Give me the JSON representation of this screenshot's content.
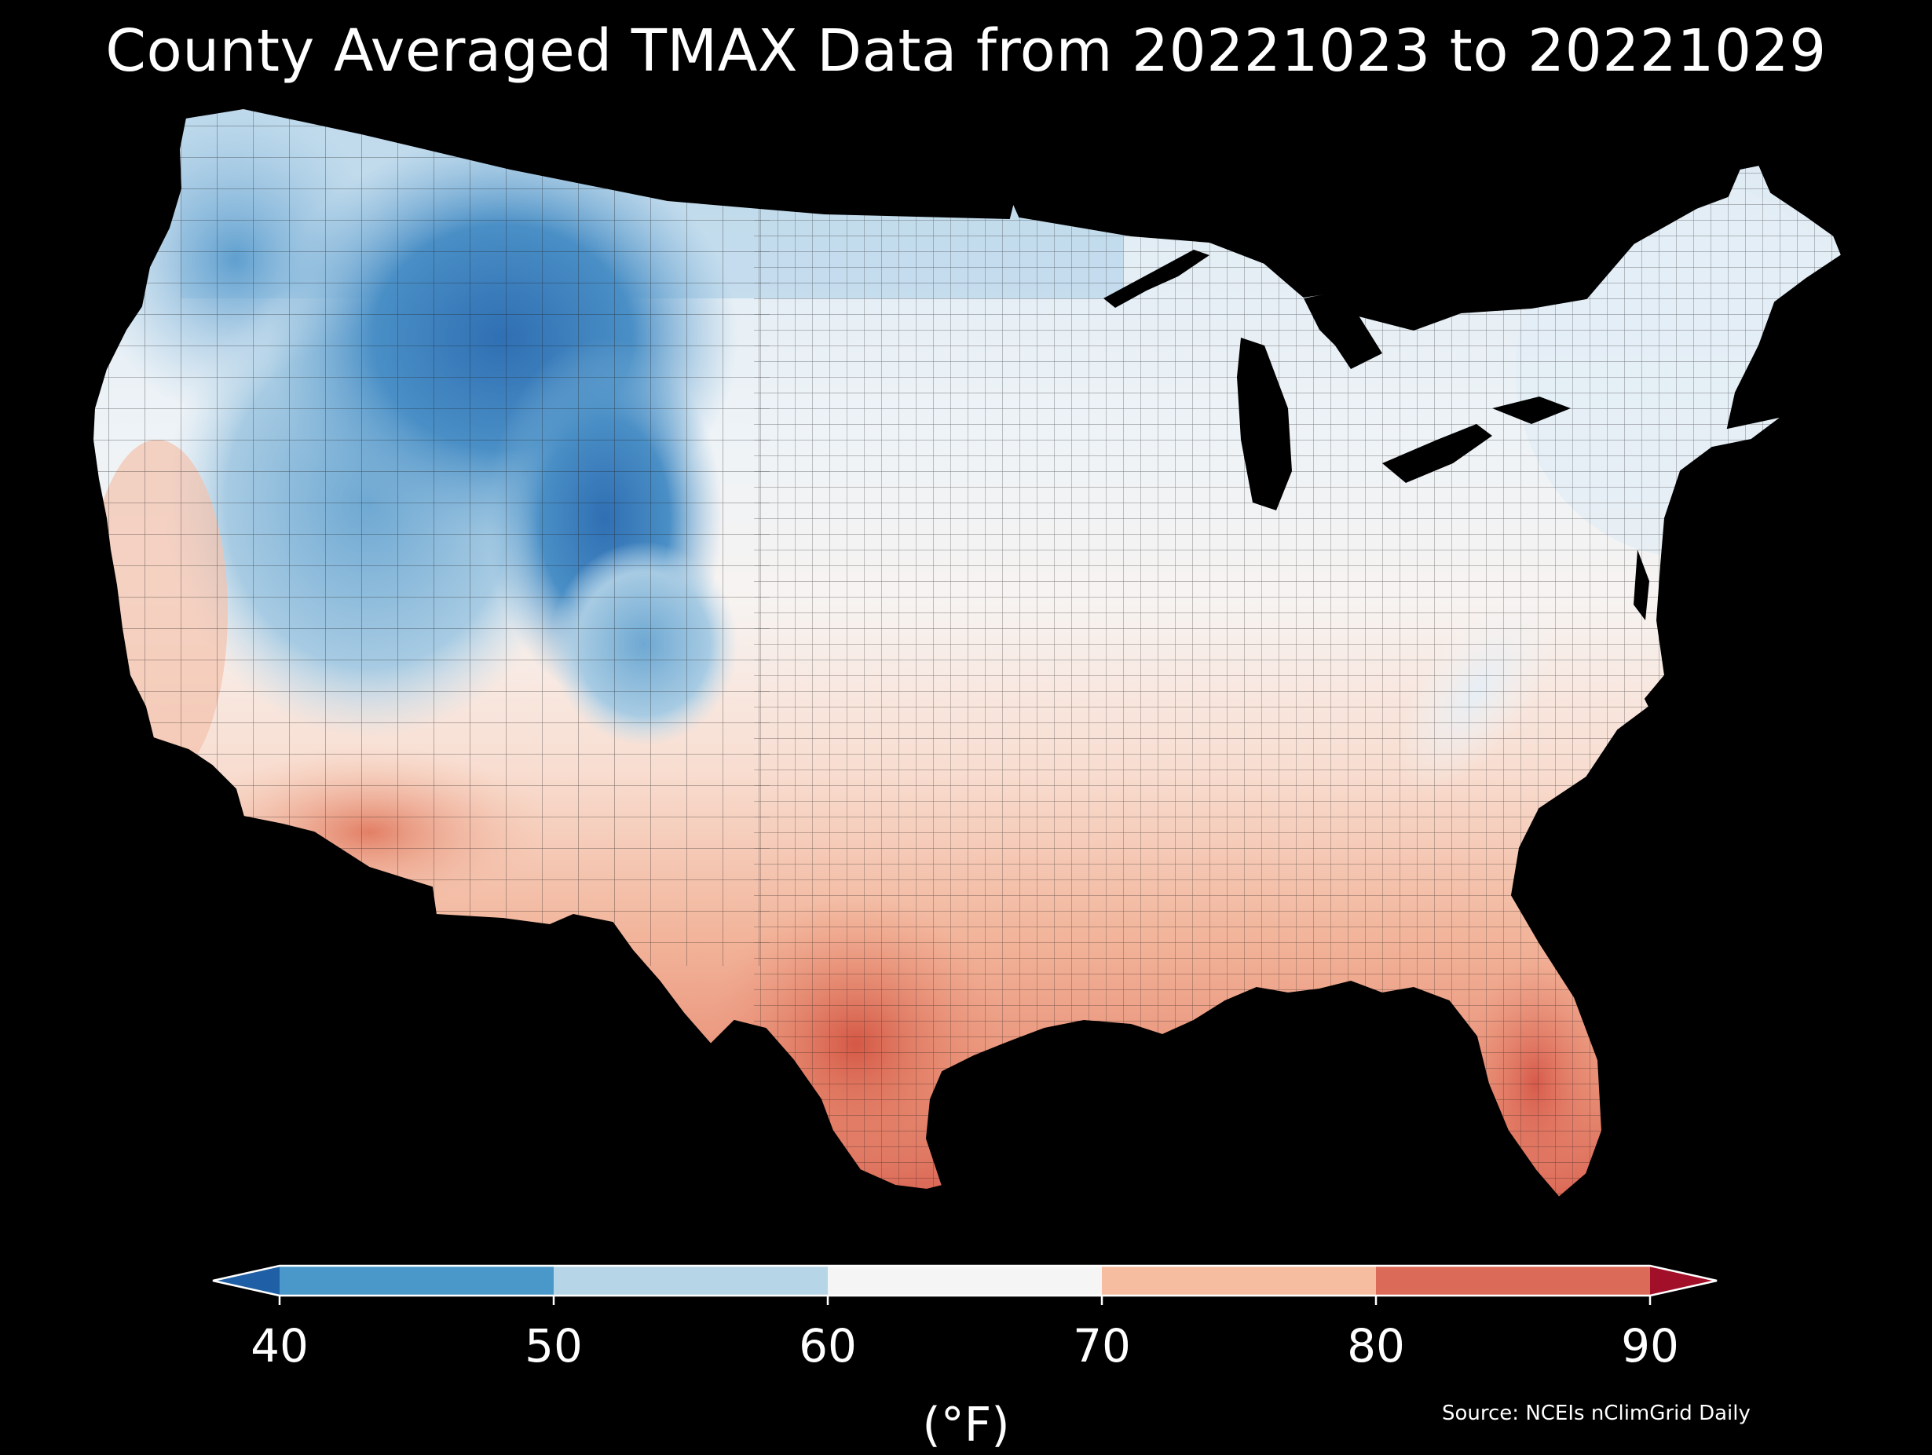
{
  "title": "County Averaged TMAX Data from 20221023 to 20221029",
  "colorbar": {
    "unit": "(°F)",
    "ticks": [
      "40",
      "50",
      "60",
      "70",
      "80",
      "90"
    ],
    "bins": [
      {
        "range": "<40",
        "color": "#1f5fa6"
      },
      {
        "range": "40-50",
        "color": "#4a98c9"
      },
      {
        "range": "50-60",
        "color": "#b6d6e8"
      },
      {
        "range": "60-70",
        "color": "#f5f5f5"
      },
      {
        "range": "70-80",
        "color": "#f7bda0"
      },
      {
        "range": "80-90",
        "color": "#dc6a58"
      },
      {
        "range": ">90",
        "color": "#a10f28"
      }
    ]
  },
  "source": "Source: NCEIs nClimGrid Daily",
  "map": {
    "region": "Contiguous United States",
    "variable": "TMAX",
    "units": "°F",
    "region_values": [
      {
        "region": "Northern Rockies / Wyoming / Montana",
        "approx_value": 44
      },
      {
        "region": "Pacific Northwest",
        "approx_value": 52
      },
      {
        "region": "Great Basin / Nevada / Utah",
        "approx_value": 50
      },
      {
        "region": "Colorado",
        "approx_value": 45
      },
      {
        "region": "Northern Plains",
        "approx_value": 56
      },
      {
        "region": "Upper Midwest / Great Lakes",
        "approx_value": 62
      },
      {
        "region": "Northeast / New England",
        "approx_value": 60
      },
      {
        "region": "California coast / Central Valley",
        "approx_value": 70
      },
      {
        "region": "Desert Southwest / Arizona",
        "approx_value": 78
      },
      {
        "region": "Southern Plains / Texas",
        "approx_value": 76
      },
      {
        "region": "South Texas",
        "approx_value": 84
      },
      {
        "region": "Southeast / Gulf Coast",
        "approx_value": 76
      },
      {
        "region": "Florida peninsula",
        "approx_value": 83
      },
      {
        "region": "Appalachians",
        "approx_value": 62
      }
    ]
  }
}
